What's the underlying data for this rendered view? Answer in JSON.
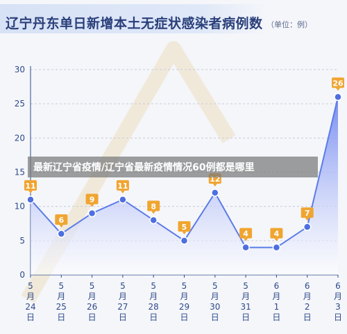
{
  "title": "辽宁丹东单日新增本土无症状感染者病例数",
  "unit": "（单位：例）",
  "overlay_caption": "最新辽宁省疫情/辽宁省最新疫情情况60例都是哪里",
  "colors": {
    "line": "#5a7be8",
    "area_top": "#6f86f0",
    "area_bottom": "#ffffff",
    "marker_fill": "#4e6fe0",
    "label_bg": "#f0a531",
    "axis": "#2c4a8a",
    "grid": "#c6ccd8",
    "watermark": "#ead9b4"
  },
  "chart_data": {
    "type": "area",
    "categories": [
      "5月24日",
      "5月25日",
      "5月26日",
      "5月27日",
      "5月28日",
      "5月29日",
      "5月30日",
      "5月31日",
      "6月1日",
      "6月2日",
      "6月3日"
    ],
    "x_tick_lines": [
      [
        "5",
        "月",
        "24",
        "日"
      ],
      [
        "5",
        "月",
        "25",
        "日"
      ],
      [
        "5",
        "月",
        "26",
        "日"
      ],
      [
        "5",
        "月",
        "27",
        "日"
      ],
      [
        "5",
        "月",
        "28",
        "日"
      ],
      [
        "5",
        "月",
        "29",
        "日"
      ],
      [
        "5",
        "月",
        "30",
        "日"
      ],
      [
        "5",
        "月",
        "31",
        "日"
      ],
      [
        "6",
        "月",
        "1",
        "日"
      ],
      [
        "6",
        "月",
        "2",
        "日"
      ],
      [
        "6",
        "月",
        "3",
        "日"
      ]
    ],
    "values": [
      11,
      6,
      9,
      11,
      8,
      5,
      12,
      4,
      4,
      7,
      26
    ],
    "ylim": [
      0,
      30
    ],
    "yticks": [
      0,
      5,
      10,
      15,
      20,
      25,
      30
    ],
    "grid": true,
    "data_labels": true
  }
}
